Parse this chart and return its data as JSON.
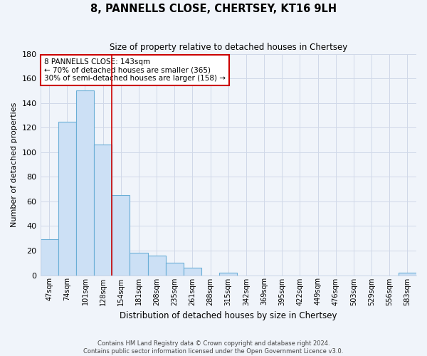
{
  "title": "8, PANNELLS CLOSE, CHERTSEY, KT16 9LH",
  "subtitle": "Size of property relative to detached houses in Chertsey",
  "xlabel": "Distribution of detached houses by size in Chertsey",
  "ylabel": "Number of detached properties",
  "bin_labels": [
    "47sqm",
    "74sqm",
    "101sqm",
    "128sqm",
    "154sqm",
    "181sqm",
    "208sqm",
    "235sqm",
    "261sqm",
    "288sqm",
    "315sqm",
    "342sqm",
    "369sqm",
    "395sqm",
    "422sqm",
    "449sqm",
    "476sqm",
    "503sqm",
    "529sqm",
    "556sqm",
    "583sqm"
  ],
  "bar_heights": [
    29,
    125,
    150,
    106,
    65,
    18,
    16,
    10,
    6,
    0,
    2,
    0,
    0,
    0,
    0,
    0,
    0,
    0,
    0,
    0,
    2
  ],
  "bar_color": "#cce0f5",
  "bar_edge_color": "#6aaed6",
  "ylim": [
    0,
    180
  ],
  "yticks": [
    0,
    20,
    40,
    60,
    80,
    100,
    120,
    140,
    160,
    180
  ],
  "grid_color": "#d0d8e8",
  "annotation_text": "8 PANNELLS CLOSE: 143sqm\n← 70% of detached houses are smaller (365)\n30% of semi-detached houses are larger (158) →",
  "annotation_box_color": "#ffffff",
  "annotation_box_edge": "#cc0000",
  "red_line_bar_index": 3,
  "footer_line1": "Contains HM Land Registry data © Crown copyright and database right 2024.",
  "footer_line2": "Contains public sector information licensed under the Open Government Licence v3.0.",
  "bg_color": "#ffffff",
  "fig_bg_color": "#f0f4fa"
}
